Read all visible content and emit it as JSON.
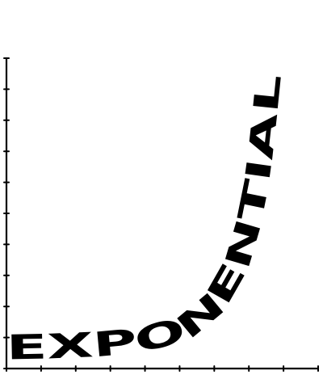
{
  "chart_data": {
    "type": "line",
    "title": "",
    "xlabel": "",
    "ylabel": "",
    "curve_text": "EXPONENTIAL",
    "grid": false,
    "legend": "none",
    "x_ticks": 9,
    "y_ticks": 10,
    "xlim": [
      0,
      9
    ],
    "ylim": [
      0,
      10
    ],
    "series": [
      {
        "color": "#000000",
        "x": [
          0,
          1,
          2,
          3,
          4,
          5,
          5.5,
          6,
          6.5,
          7,
          7.3,
          7.6,
          7.9
        ],
        "y": [
          0.3,
          0.32,
          0.36,
          0.42,
          0.55,
          0.85,
          1.15,
          1.6,
          2.3,
          3.4,
          4.6,
          6.3,
          9.6
        ]
      }
    ],
    "colors": {
      "axis": "#000000",
      "text": "#000000",
      "background": "#ffffff"
    }
  }
}
